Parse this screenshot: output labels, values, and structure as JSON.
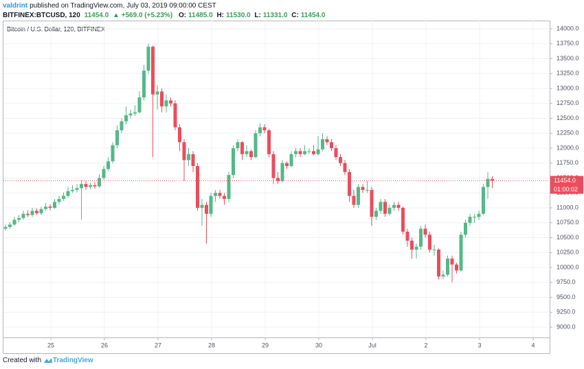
{
  "header": {
    "author": "valdrint",
    "published": "published on TradingView.com, July 03, 2019 09:00:00 CEST",
    "symbol": "BITFINEX:BTCUSD, 120",
    "price": "11454.0",
    "change": "+569.0 (+5.23%)",
    "o_label": "O:",
    "o": "11485.0",
    "h_label": "H:",
    "h": "11530.0",
    "l_label": "L:",
    "l": "11331.0",
    "c_label": "C:",
    "c": "11454.0"
  },
  "footer": {
    "text": "Created with",
    "logo": "TradingView"
  },
  "chart_data": {
    "type": "candlestick",
    "title": "Bitcoin / U.S. Dollar, 120, BITFINEX",
    "up_color": "#53b987",
    "down_color": "#eb4d5c",
    "grid": true,
    "last_price_label": "11454.0",
    "countdown": "01:00:02",
    "xlim": [
      24.115,
      34.308
    ],
    "xticks": [
      25,
      26,
      27,
      28,
      29,
      30,
      {
        "value": 31,
        "label": "Jul"
      },
      {
        "value": 32,
        "label": "2"
      },
      {
        "value": 33,
        "label": "3"
      },
      {
        "value": 34,
        "label": "4"
      }
    ],
    "ylim": [
      8828,
      14138
    ],
    "yticks": [
      {
        "value": 9000,
        "label": "9000.0"
      },
      {
        "value": 9250,
        "label": "9250.0"
      },
      {
        "value": 9500,
        "label": "9500.0"
      },
      {
        "value": 9750,
        "label": "9750.0"
      },
      {
        "value": 10000,
        "label": "10000.0"
      },
      {
        "value": 10250,
        "label": "10250.0"
      },
      {
        "value": 10500,
        "label": "10500.0"
      },
      {
        "value": 10750,
        "label": "10750.0"
      },
      {
        "value": 11000,
        "label": "11000.0"
      },
      {
        "value": 11250,
        "label": "11250.0"
      },
      {
        "value": 11500,
        "label": "11500.0"
      },
      {
        "value": 11750,
        "label": "11750.0"
      },
      {
        "value": 12000,
        "label": "12000.0"
      },
      {
        "value": 12250,
        "label": "12250.0"
      },
      {
        "value": 12500,
        "label": "12500.0"
      },
      {
        "value": 12750,
        "label": "12750.0"
      },
      {
        "value": 13000,
        "label": "13000.0"
      },
      {
        "value": 13250,
        "label": "13250.0"
      },
      {
        "value": 13500,
        "label": "13500.0"
      },
      {
        "value": 13750,
        "label": "13750.0"
      },
      {
        "value": 14000,
        "label": "14000.0"
      }
    ],
    "ohlc": [
      [
        10650,
        10720,
        10620,
        10680
      ],
      [
        10680,
        10760,
        10650,
        10720
      ],
      [
        10720,
        10850,
        10700,
        10800
      ],
      [
        10800,
        10880,
        10760,
        10830
      ],
      [
        10830,
        10950,
        10800,
        10900
      ],
      [
        10900,
        10960,
        10850,
        10880
      ],
      [
        10880,
        11000,
        10850,
        10950
      ],
      [
        10950,
        10990,
        10880,
        10910
      ],
      [
        10910,
        11020,
        10880,
        10980
      ],
      [
        10980,
        11080,
        10950,
        11020
      ],
      [
        11020,
        11060,
        10960,
        11000
      ],
      [
        11000,
        11150,
        10980,
        11100
      ],
      [
        11100,
        11200,
        11060,
        11150
      ],
      [
        11150,
        11260,
        11120,
        11200
      ],
      [
        11200,
        11350,
        11170,
        11280
      ],
      [
        11280,
        11380,
        11250,
        11300
      ],
      [
        11300,
        11400,
        11260,
        11330
      ],
      [
        11330,
        11460,
        10800,
        11400
      ],
      [
        11400,
        11450,
        11300,
        11350
      ],
      [
        11350,
        11420,
        11310,
        11380
      ],
      [
        11380,
        11430,
        11320,
        11360
      ],
      [
        11360,
        11560,
        11340,
        11500
      ],
      [
        11500,
        11700,
        11470,
        11650
      ],
      [
        11650,
        11850,
        11620,
        11780
      ],
      [
        11780,
        12100,
        11750,
        12050
      ],
      [
        12050,
        12380,
        12000,
        12300
      ],
      [
        12300,
        12500,
        12250,
        12450
      ],
      [
        12450,
        12700,
        12400,
        12550
      ],
      [
        12550,
        12650,
        12500,
        12580
      ],
      [
        12580,
        12720,
        12540,
        12600
      ],
      [
        12600,
        12950,
        12580,
        12850
      ],
      [
        12850,
        13400,
        12800,
        13300
      ],
      [
        13300,
        13750,
        13250,
        13700
      ],
      [
        13700,
        13720,
        11850,
        12900
      ],
      [
        12900,
        13050,
        12650,
        12950
      ],
      [
        12950,
        13000,
        12600,
        12700
      ],
      [
        12700,
        12900,
        12600,
        12800
      ],
      [
        12800,
        12850,
        12700,
        12750
      ],
      [
        12750,
        12800,
        12300,
        12350
      ],
      [
        12350,
        12400,
        11950,
        12100
      ],
      [
        12100,
        12150,
        11450,
        11800
      ],
      [
        11800,
        12000,
        11700,
        11900
      ],
      [
        11900,
        11950,
        11600,
        11700
      ],
      [
        11700,
        11750,
        10950,
        11000
      ],
      [
        11000,
        11150,
        10700,
        11050
      ],
      [
        11050,
        11100,
        10400,
        10900
      ],
      [
        10900,
        11250,
        10850,
        11200
      ],
      [
        11200,
        11300,
        11100,
        11250
      ],
      [
        11250,
        11300,
        11150,
        11200
      ],
      [
        11200,
        11250,
        11050,
        11150
      ],
      [
        11150,
        11600,
        11100,
        11550
      ],
      [
        11550,
        12050,
        11500,
        12000
      ],
      [
        12000,
        12150,
        11950,
        12100
      ],
      [
        12100,
        12120,
        11800,
        11900
      ],
      [
        11900,
        12050,
        11850,
        11950
      ],
      [
        11950,
        11980,
        11800,
        11850
      ],
      [
        11850,
        12300,
        11830,
        12250
      ],
      [
        12250,
        12420,
        12200,
        12350
      ],
      [
        12350,
        12400,
        12250,
        12300
      ],
      [
        12300,
        12320,
        11850,
        11900
      ],
      [
        11900,
        11950,
        11400,
        11500
      ],
      [
        11500,
        11600,
        11400,
        11450
      ],
      [
        11450,
        11800,
        11420,
        11750
      ],
      [
        11750,
        11780,
        11650,
        11700
      ],
      [
        11700,
        11950,
        11680,
        11900
      ],
      [
        11900,
        12000,
        11850,
        11950
      ],
      [
        11950,
        12000,
        11850,
        11900
      ],
      [
        11900,
        12050,
        11880,
        11950
      ],
      [
        11950,
        12000,
        11900,
        11950
      ],
      [
        11950,
        12050,
        11880,
        11900
      ],
      [
        11900,
        12200,
        11880,
        11980
      ],
      [
        11980,
        12250,
        11950,
        12150
      ],
      [
        12150,
        12200,
        12050,
        12100
      ],
      [
        12100,
        12150,
        11950,
        12000
      ],
      [
        12000,
        12050,
        11800,
        11850
      ],
      [
        11850,
        11900,
        11700,
        11750
      ],
      [
        11750,
        11800,
        11550,
        11600
      ],
      [
        11600,
        11650,
        11100,
        11200
      ],
      [
        11200,
        11300,
        11000,
        11050
      ],
      [
        11050,
        11400,
        11000,
        11350
      ],
      [
        11350,
        11400,
        11250,
        11300
      ],
      [
        11300,
        11450,
        11250,
        11300
      ],
      [
        11300,
        11350,
        10700,
        10850
      ],
      [
        10850,
        11000,
        10800,
        10950
      ],
      [
        10950,
        11150,
        10900,
        11100
      ],
      [
        11100,
        11150,
        10850,
        10900
      ],
      [
        10900,
        11050,
        10870,
        11000
      ],
      [
        11000,
        11100,
        10950,
        11050
      ],
      [
        11050,
        11100,
        10950,
        11000
      ],
      [
        11000,
        11020,
        10550,
        10600
      ],
      [
        10600,
        10650,
        10350,
        10450
      ],
      [
        10450,
        10500,
        10150,
        10300
      ],
      [
        10300,
        10400,
        10150,
        10350
      ],
      [
        10350,
        10700,
        10300,
        10650
      ],
      [
        10650,
        10720,
        10500,
        10550
      ],
      [
        10550,
        10600,
        10250,
        10300
      ],
      [
        10300,
        10380,
        10200,
        10300
      ],
      [
        10300,
        10320,
        9800,
        9850
      ],
      [
        9850,
        9950,
        9800,
        9880
      ],
      [
        9880,
        10200,
        9850,
        10150
      ],
      [
        10150,
        10200,
        9750,
        10050
      ],
      [
        10050,
        10080,
        9900,
        9950
      ],
      [
        9950,
        10600,
        9930,
        10550
      ],
      [
        10550,
        10800,
        10500,
        10750
      ],
      [
        10750,
        10900,
        10700,
        10850
      ],
      [
        10850,
        10900,
        10750,
        10850
      ],
      [
        10850,
        10950,
        10800,
        10900
      ],
      [
        10900,
        11400,
        10880,
        11350
      ],
      [
        11350,
        11600,
        11150,
        11485
      ],
      [
        11485,
        11530,
        11331,
        11454
      ]
    ]
  }
}
